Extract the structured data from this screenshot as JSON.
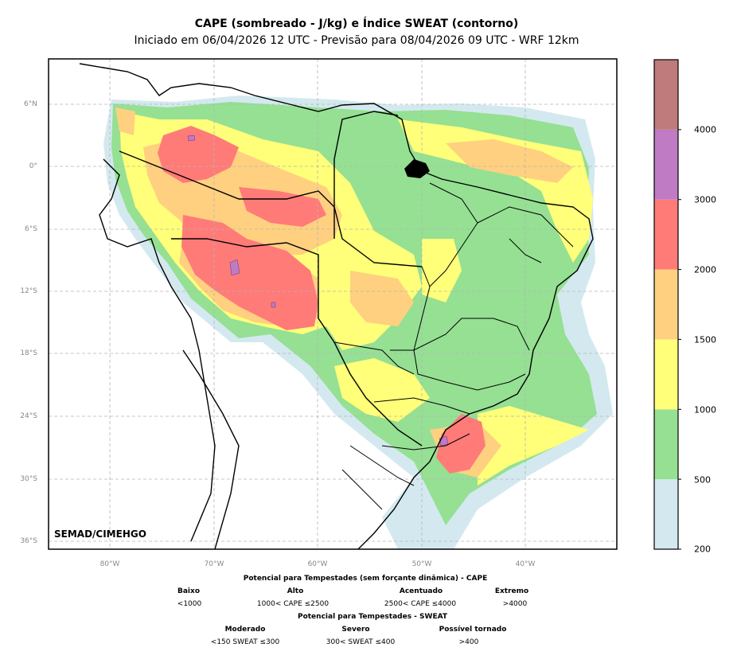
{
  "title": "CAPE (sombreado - J/kg) e Índice SWEAT (contorno)",
  "subtitle": "Iniciado em 06/04/2026 12 UTC - Previsão para 08/04/2026 09 UTC - WRF 12km",
  "credit": "SEMAD/CIMEHGO",
  "axes": {
    "lat_labels": [
      "6°N",
      "0°",
      "6°S",
      "12°S",
      "18°S",
      "24°S",
      "30°S",
      "36°S"
    ],
    "lon_labels": [
      "80°W",
      "70°W",
      "60°W",
      "50°W",
      "40°W"
    ]
  },
  "colorbar": {
    "labels": [
      "200",
      "500",
      "1000",
      "1500",
      "2000",
      "3000",
      "4000"
    ],
    "colors": [
      "#d3e9ef",
      "#95e093",
      "#ffff7a",
      "#ffd080",
      "#ff7b78",
      "#bf7bc4",
      "#bf7b7b"
    ]
  },
  "footer": {
    "cape_title": "Potencial para Tempestades (sem forçante dinâmica) - CAPE",
    "cape_levels": [
      "Baixo",
      "Alto",
      "Acentuado",
      "Extremo"
    ],
    "cape_ranges": [
      "<1000",
      "1000< CAPE ≤2500",
      "2500< CAPE ≤4000",
      ">4000"
    ],
    "sweat_title": "Potencial para Tempestades - SWEAT",
    "sweat_levels": [
      "Moderado",
      "Severo",
      "Possível tornado"
    ],
    "sweat_ranges": [
      "<150 SWEAT ≤300",
      "300< SWEAT ≤400",
      ">400"
    ]
  }
}
